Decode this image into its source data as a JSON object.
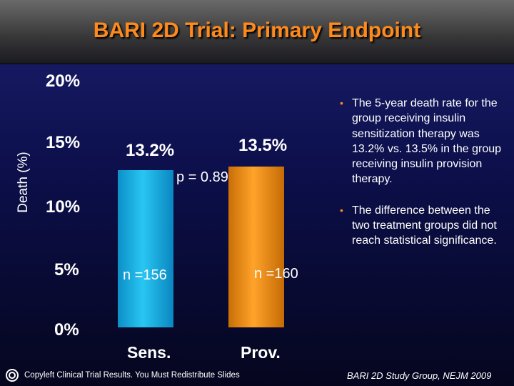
{
  "header": {
    "title": "BARI 2D Trial: Primary Endpoint"
  },
  "chart_data": {
    "type": "bar",
    "categories": [
      "Sens.",
      "Prov."
    ],
    "values": [
      13.2,
      13.5
    ],
    "data_labels": [
      "13.2%",
      "13.5%"
    ],
    "n_labels": [
      "n =156",
      "n =160"
    ],
    "p_value_label": "p = 0.89",
    "ylabel": "Death (%)",
    "yticks": [
      "20%",
      "15%",
      "10%",
      "5%",
      "0%"
    ],
    "ylim": [
      0,
      20
    ],
    "grid": false,
    "colors": [
      "#1fb4e8",
      "#f28c10"
    ]
  },
  "bullets": [
    "The 5-year death rate for the group receiving insulin sensitization therapy was 13.2% vs. 13.5% in the group receiving insulin provision therapy.",
    "The difference between the two treatment groups did not reach statistical significance."
  ],
  "footer": {
    "left": "Copyleft Clinical Trial Results. You Must Redistribute Slides",
    "right": "BARI 2D Study Group, NEJM 2009"
  }
}
